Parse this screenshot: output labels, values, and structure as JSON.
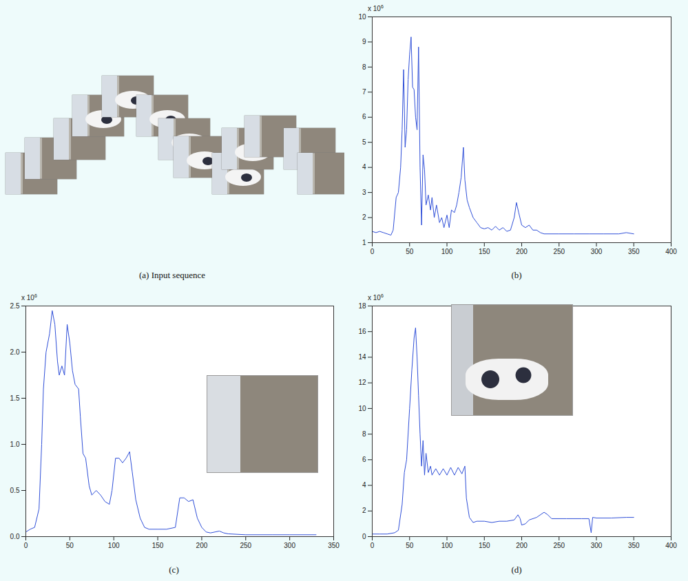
{
  "image_panel": {
    "caption": "(a) Input sequence"
  },
  "chart_data": [
    {
      "type": "line",
      "caption": "(b)",
      "multiplier": {
        "text": "x 10",
        "exponent": "6"
      },
      "color": "#2f4fd8",
      "x": [
        0,
        5,
        10,
        15,
        20,
        25,
        28,
        32,
        35,
        38,
        40,
        42,
        44,
        46,
        48,
        50,
        52,
        54,
        56,
        58,
        60,
        62,
        64,
        66,
        68,
        70,
        72,
        75,
        78,
        80,
        83,
        86,
        90,
        93,
        96,
        100,
        103,
        106,
        110,
        113,
        116,
        119,
        122,
        124,
        127,
        130,
        135,
        140,
        145,
        150,
        155,
        160,
        165,
        170,
        175,
        180,
        185,
        190,
        193,
        196,
        200,
        205,
        210,
        215,
        220,
        225,
        230,
        250,
        270,
        290,
        310,
        330,
        340,
        350
      ],
      "values": [
        1.45,
        1.4,
        1.45,
        1.4,
        1.35,
        1.3,
        1.5,
        2.8,
        3.0,
        4.0,
        5.5,
        7.9,
        4.8,
        5.5,
        7.5,
        8.5,
        9.2,
        7.2,
        7.1,
        6.0,
        5.5,
        8.8,
        4.0,
        1.7,
        4.5,
        3.9,
        2.5,
        2.9,
        2.3,
        2.8,
        2.0,
        2.5,
        1.8,
        2.0,
        1.6,
        2.1,
        1.6,
        2.3,
        2.2,
        2.5,
        3.0,
        3.6,
        4.8,
        3.5,
        2.7,
        2.4,
        2.0,
        1.8,
        1.6,
        1.55,
        1.6,
        1.5,
        1.65,
        1.5,
        1.6,
        1.45,
        1.5,
        2.0,
        2.6,
        2.2,
        1.7,
        1.6,
        1.7,
        1.5,
        1.5,
        1.4,
        1.35,
        1.35,
        1.35,
        1.35,
        1.35,
        1.35,
        1.4,
        1.35
      ],
      "xlim": [
        0,
        400
      ],
      "xticks": [
        0,
        50,
        100,
        150,
        200,
        250,
        300,
        350,
        400
      ],
      "ylim": [
        1,
        10
      ],
      "yticks": [
        1,
        2,
        3,
        4,
        5,
        6,
        7,
        8,
        9,
        10
      ]
    },
    {
      "type": "line",
      "caption": "(c)",
      "multiplier": {
        "text": "x 10",
        "exponent": "6"
      },
      "color": "#2f4fd8",
      "x": [
        0,
        5,
        10,
        15,
        18,
        20,
        23,
        27,
        30,
        33,
        36,
        38,
        41,
        44,
        47,
        50,
        53,
        56,
        60,
        62,
        65,
        68,
        72,
        75,
        80,
        85,
        90,
        95,
        98,
        102,
        106,
        110,
        114,
        118,
        121,
        125,
        130,
        135,
        140,
        150,
        160,
        170,
        175,
        180,
        185,
        190,
        195,
        200,
        205,
        210,
        215,
        220,
        225,
        230,
        250,
        280,
        300,
        330
      ],
      "values": [
        0.05,
        0.08,
        0.1,
        0.3,
        1.0,
        1.6,
        2.0,
        2.2,
        2.45,
        2.3,
        1.9,
        1.75,
        1.85,
        1.75,
        2.3,
        2.1,
        1.8,
        1.65,
        1.6,
        1.3,
        0.9,
        0.85,
        0.55,
        0.45,
        0.5,
        0.45,
        0.38,
        0.35,
        0.5,
        0.85,
        0.85,
        0.8,
        0.85,
        0.92,
        0.7,
        0.4,
        0.2,
        0.1,
        0.08,
        0.08,
        0.08,
        0.1,
        0.42,
        0.42,
        0.38,
        0.4,
        0.2,
        0.1,
        0.05,
        0.04,
        0.05,
        0.06,
        0.04,
        0.03,
        0.02,
        0.02,
        0.02,
        0.02
      ],
      "xlim": [
        0,
        350
      ],
      "xticks": [
        0,
        50,
        100,
        150,
        200,
        250,
        300,
        350
      ],
      "ylim": [
        0,
        2.5
      ],
      "yticks": [
        0,
        0.5,
        1,
        1.5,
        2,
        2.5
      ]
    },
    {
      "type": "line",
      "caption": "(d)",
      "multiplier": {
        "text": "x 10",
        "exponent": "6"
      },
      "color": "#2f4fd8",
      "x": [
        0,
        10,
        20,
        30,
        35,
        40,
        43,
        46,
        50,
        53,
        56,
        58,
        60,
        62,
        64,
        66,
        68,
        70,
        72,
        75,
        78,
        80,
        85,
        90,
        95,
        100,
        105,
        110,
        115,
        120,
        124,
        126,
        130,
        135,
        140,
        150,
        160,
        170,
        180,
        190,
        195,
        198,
        200,
        205,
        210,
        220,
        230,
        235,
        240,
        260,
        280,
        290,
        293,
        295,
        300,
        320,
        340,
        350
      ],
      "values": [
        0.2,
        0.2,
        0.2,
        0.3,
        0.5,
        2.5,
        5,
        6,
        10,
        13,
        15.5,
        16.3,
        14,
        11,
        8,
        5.5,
        7.5,
        4.8,
        6.5,
        5.0,
        5.5,
        4.8,
        5.3,
        4.8,
        5.3,
        4.8,
        5.4,
        4.8,
        5.4,
        4.9,
        5.5,
        3,
        1.5,
        1.1,
        1.2,
        1.2,
        1.1,
        1.2,
        1.2,
        1.3,
        1.7,
        1.4,
        0.9,
        1.0,
        1.3,
        1.5,
        1.9,
        1.7,
        1.4,
        1.4,
        1.4,
        1.4,
        0.3,
        1.5,
        1.45,
        1.45,
        1.5,
        1.5
      ],
      "xlim": [
        0,
        400
      ],
      "xticks": [
        0,
        50,
        100,
        150,
        200,
        250,
        300,
        350,
        400
      ],
      "ylim": [
        0,
        18
      ],
      "yticks": [
        0,
        2,
        4,
        6,
        8,
        10,
        12,
        14,
        16,
        18
      ]
    }
  ]
}
